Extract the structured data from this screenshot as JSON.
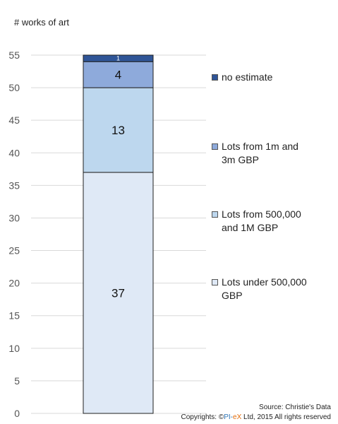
{
  "chart_data": {
    "type": "bar",
    "stacked": true,
    "ylabel": "# works of art",
    "ylim": [
      0,
      55
    ],
    "yticks": [
      0,
      5,
      10,
      15,
      20,
      25,
      30,
      35,
      40,
      45,
      50,
      55
    ],
    "grid": true,
    "legend_position": "right",
    "categories": [
      ""
    ],
    "series": [
      {
        "name": "Lots under 500,000 GBP",
        "values": [
          37
        ],
        "color": "#dfe9f6",
        "label": "37"
      },
      {
        "name": "Lots from 500,000 and 1M GBP",
        "values": [
          13
        ],
        "color": "#bdd7ee",
        "label": "13"
      },
      {
        "name": "Lots from 1m and 3m  GBP",
        "values": [
          4
        ],
        "color": "#8eaadb",
        "label": "4"
      },
      {
        "name": "no estimate",
        "values": [
          1
        ],
        "color": "#2f5597",
        "label": "1"
      }
    ]
  },
  "legend": {
    "no_estimate": "no estimate",
    "lots_1m_3m_line1": "Lots from 1m and",
    "lots_1m_3m_line2": "3m  GBP",
    "lots_500k_1m_line1": "Lots from 500,000",
    "lots_500k_1m_line2": "and 1M GBP",
    "lots_under_500k_line1": "Lots under 500,000",
    "lots_under_500k_line2": "GBP"
  },
  "footer": {
    "source": "Source: Christie's Data",
    "copyright_prefix": "Copyrights: ©",
    "brand_part1": "PI-",
    "brand_part2": "eX",
    "copyright_suffix": " Ltd, 2015 All rights reserved"
  }
}
